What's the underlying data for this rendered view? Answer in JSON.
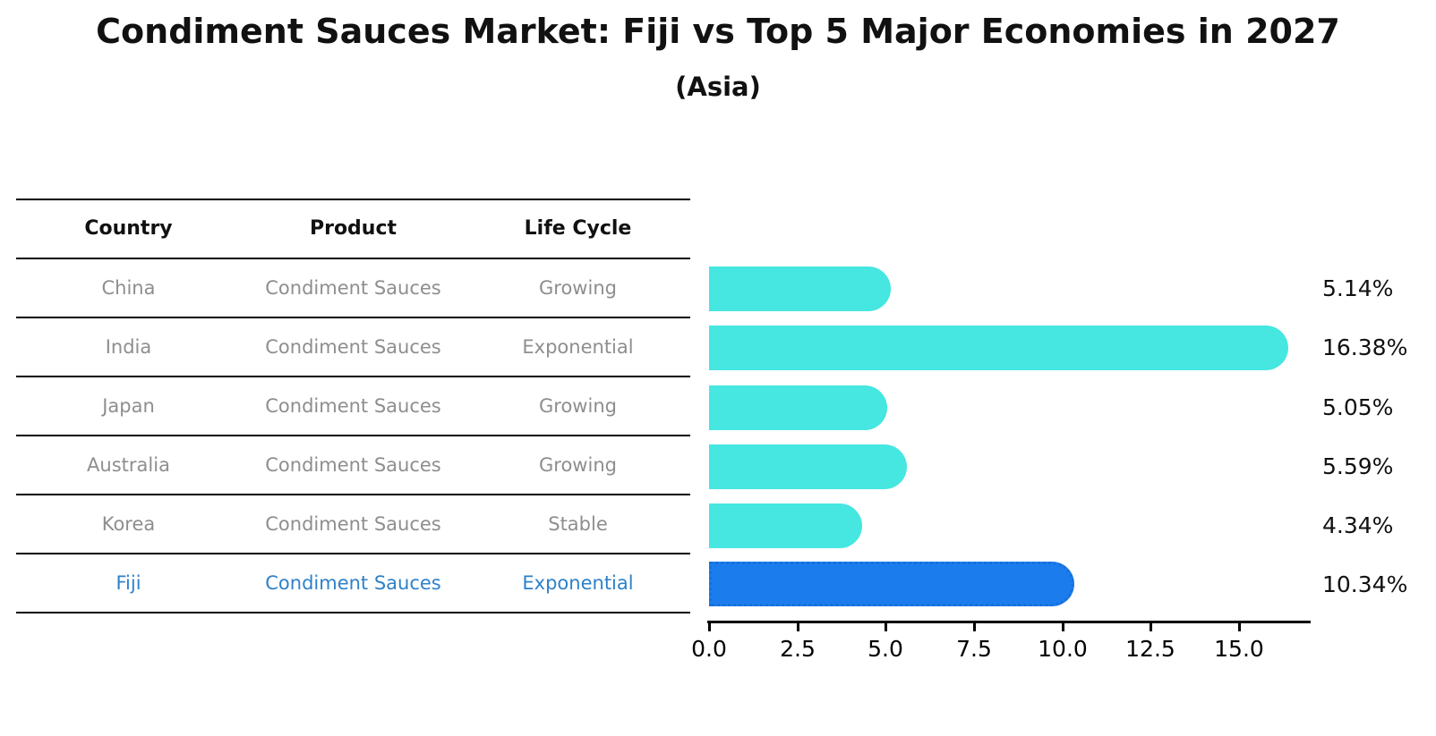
{
  "title": "Condiment Sauces Market: Fiji vs Top 5 Major Economies in 2027",
  "subtitle": "(Asia)",
  "table": {
    "headers": [
      "Country",
      "Product",
      "Life Cycle"
    ],
    "rows": [
      {
        "country": "China",
        "product": "Condiment Sauces",
        "life_cycle": "Growing",
        "highlight": false
      },
      {
        "country": "India",
        "product": "Condiment Sauces",
        "life_cycle": "Exponential",
        "highlight": false
      },
      {
        "country": "Japan",
        "product": "Condiment Sauces",
        "life_cycle": "Growing",
        "highlight": false
      },
      {
        "country": "Australia",
        "product": "Condiment Sauces",
        "life_cycle": "Growing",
        "highlight": false
      },
      {
        "country": "Korea",
        "product": "Condiment Sauces",
        "life_cycle": "Stable",
        "highlight": false
      },
      {
        "country": "Fiji",
        "product": "Condiment Sauces",
        "life_cycle": "Exponential",
        "highlight": true
      }
    ]
  },
  "chart_data": {
    "type": "bar",
    "orientation": "horizontal",
    "title": "Condiment Sauces Market: Fiji vs Top 5 Major Economies in 2027",
    "subtitle": "(Asia)",
    "categories": [
      "China",
      "India",
      "Japan",
      "Australia",
      "Korea",
      "Fiji"
    ],
    "values": [
      5.14,
      16.38,
      5.05,
      5.59,
      4.34,
      10.34
    ],
    "value_labels": [
      "5.14%",
      "16.38%",
      "5.05%",
      "5.59%",
      "4.34%",
      "10.34%"
    ],
    "xlabel": "",
    "ylabel": "",
    "xlim": [
      0,
      17
    ],
    "xticks": [
      "0.0",
      "2.5",
      "5.0",
      "7.5",
      "10.0",
      "12.5",
      "15.0"
    ],
    "grid": false,
    "legend": "none",
    "highlight_category": "Fiji",
    "colors": {
      "bar": "#46E6E1",
      "highlight_bar": "#1B7CED",
      "highlight_border": "#1670DC",
      "highlight_text": "#2E81C9",
      "row_text": "#8E8E8E",
      "text": "#111111"
    }
  }
}
